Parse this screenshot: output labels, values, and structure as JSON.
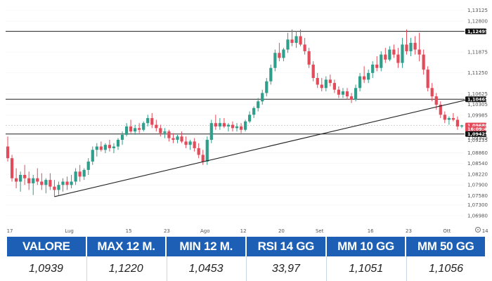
{
  "chart_data": {
    "type": "candlestick",
    "x_ticks": [
      "17",
      "Lug",
      "15",
      "23",
      "Ago",
      "12",
      "20",
      "Set",
      "16",
      "23",
      "Ott",
      "14"
    ],
    "y_ticks": [
      "1,13125",
      "1,12800",
      "1,12495",
      "1,11875",
      "1,11250",
      "1,10625",
      "1,10305",
      "1,09985",
      "1,09305",
      "1,09235",
      "1,08860",
      "1,08540",
      "1,08220",
      "1,07900",
      "1,07580",
      "1,07300",
      "1,06980"
    ],
    "ylim": [
      1.0675,
      1.1318
    ],
    "price_tags": [
      {
        "label": "1,12495",
        "value": 1.12495,
        "style": "dark"
      },
      {
        "label": "1,10465",
        "value": 1.10465,
        "style": "dark"
      },
      {
        "label": "1,09680",
        "value": 1.0968,
        "style": "red"
      },
      {
        "label": "16:09:45",
        "value": 1.0957,
        "style": "red"
      },
      {
        "label": "1,09425",
        "value": 1.09425,
        "style": "dark"
      }
    ],
    "horizontal_levels": [
      1.12495,
      1.10465,
      1.09425
    ],
    "trendline": {
      "from": {
        "index": 11,
        "value": 1.0755
      },
      "to": {
        "index": 109,
        "value": 1.1047
      }
    },
    "candles": [
      {
        "o": 1.0905,
        "h": 1.0935,
        "l": 1.086,
        "c": 1.087
      },
      {
        "o": 1.087,
        "h": 1.088,
        "l": 1.08,
        "c": 1.081
      },
      {
        "o": 1.081,
        "h": 1.084,
        "l": 1.078,
        "c": 1.08
      },
      {
        "o": 1.08,
        "h": 1.083,
        "l": 1.077,
        "c": 1.082
      },
      {
        "o": 1.082,
        "h": 1.085,
        "l": 1.079,
        "c": 1.081
      },
      {
        "o": 1.081,
        "h": 1.083,
        "l": 1.0775,
        "c": 1.0795
      },
      {
        "o": 1.0795,
        "h": 1.082,
        "l": 1.076,
        "c": 1.081
      },
      {
        "o": 1.081,
        "h": 1.084,
        "l": 1.079,
        "c": 1.08
      },
      {
        "o": 1.08,
        "h": 1.0825,
        "l": 1.0775,
        "c": 1.079
      },
      {
        "o": 1.079,
        "h": 1.081,
        "l": 1.0765,
        "c": 1.0805
      },
      {
        "o": 1.0805,
        "h": 1.0825,
        "l": 1.0775,
        "c": 1.0785
      },
      {
        "o": 1.0785,
        "h": 1.0805,
        "l": 1.0755,
        "c": 1.0775
      },
      {
        "o": 1.0775,
        "h": 1.08,
        "l": 1.076,
        "c": 1.079
      },
      {
        "o": 1.079,
        "h": 1.081,
        "l": 1.077,
        "c": 1.08
      },
      {
        "o": 1.08,
        "h": 1.0815,
        "l": 1.0775,
        "c": 1.079
      },
      {
        "o": 1.079,
        "h": 1.082,
        "l": 1.078,
        "c": 1.08
      },
      {
        "o": 1.08,
        "h": 1.084,
        "l": 1.079,
        "c": 1.083
      },
      {
        "o": 1.083,
        "h": 1.085,
        "l": 1.08,
        "c": 1.0815
      },
      {
        "o": 1.0815,
        "h": 1.084,
        "l": 1.0805,
        "c": 1.0835
      },
      {
        "o": 1.0835,
        "h": 1.087,
        "l": 1.082,
        "c": 1.086
      },
      {
        "o": 1.086,
        "h": 1.0905,
        "l": 1.085,
        "c": 1.0895
      },
      {
        "o": 1.0895,
        "h": 1.0915,
        "l": 1.0875,
        "c": 1.0905
      },
      {
        "o": 1.0905,
        "h": 1.092,
        "l": 1.089,
        "c": 1.0895
      },
      {
        "o": 1.0895,
        "h": 1.0915,
        "l": 1.0885,
        "c": 1.091
      },
      {
        "o": 1.091,
        "h": 1.0925,
        "l": 1.089,
        "c": 1.09
      },
      {
        "o": 1.09,
        "h": 1.0915,
        "l": 1.0885,
        "c": 1.0905
      },
      {
        "o": 1.0905,
        "h": 1.093,
        "l": 1.0895,
        "c": 1.0925
      },
      {
        "o": 1.0925,
        "h": 1.095,
        "l": 1.091,
        "c": 1.094
      },
      {
        "o": 1.094,
        "h": 1.0975,
        "l": 1.0935,
        "c": 1.0965
      },
      {
        "o": 1.0965,
        "h": 1.0985,
        "l": 1.0945,
        "c": 1.095
      },
      {
        "o": 1.095,
        "h": 1.097,
        "l": 1.094,
        "c": 1.096
      },
      {
        "o": 1.096,
        "h": 1.0975,
        "l": 1.0945,
        "c": 1.0955
      },
      {
        "o": 1.0955,
        "h": 1.098,
        "l": 1.095,
        "c": 1.0975
      },
      {
        "o": 1.0975,
        "h": 1.1,
        "l": 1.0965,
        "c": 1.099
      },
      {
        "o": 1.099,
        "h": 1.1005,
        "l": 1.096,
        "c": 1.097
      },
      {
        "o": 1.097,
        "h": 1.0985,
        "l": 1.095,
        "c": 1.096
      },
      {
        "o": 1.096,
        "h": 1.097,
        "l": 1.0935,
        "c": 1.0945
      },
      {
        "o": 1.0945,
        "h": 1.096,
        "l": 1.093,
        "c": 1.095
      },
      {
        "o": 1.095,
        "h": 1.0955,
        "l": 1.092,
        "c": 1.093
      },
      {
        "o": 1.093,
        "h": 1.0945,
        "l": 1.0915,
        "c": 1.0925
      },
      {
        "o": 1.0925,
        "h": 1.094,
        "l": 1.0915,
        "c": 1.0935
      },
      {
        "o": 1.0935,
        "h": 1.095,
        "l": 1.0915,
        "c": 1.092
      },
      {
        "o": 1.092,
        "h": 1.0935,
        "l": 1.09,
        "c": 1.091
      },
      {
        "o": 1.091,
        "h": 1.0925,
        "l": 1.0895,
        "c": 1.092
      },
      {
        "o": 1.092,
        "h": 1.093,
        "l": 1.089,
        "c": 1.09
      },
      {
        "o": 1.09,
        "h": 1.0915,
        "l": 1.087,
        "c": 1.088
      },
      {
        "o": 1.088,
        "h": 1.0895,
        "l": 1.085,
        "c": 1.086
      },
      {
        "o": 1.086,
        "h": 1.0935,
        "l": 1.085,
        "c": 1.0925
      },
      {
        "o": 1.0925,
        "h": 1.0985,
        "l": 1.0915,
        "c": 1.0975
      },
      {
        "o": 1.0975,
        "h": 1.1,
        "l": 1.0955,
        "c": 1.0965
      },
      {
        "o": 1.0965,
        "h": 1.099,
        "l": 1.0955,
        "c": 1.0975
      },
      {
        "o": 1.0975,
        "h": 1.099,
        "l": 1.096,
        "c": 1.0965
      },
      {
        "o": 1.0965,
        "h": 1.0975,
        "l": 1.095,
        "c": 1.097
      },
      {
        "o": 1.097,
        "h": 1.098,
        "l": 1.095,
        "c": 1.096
      },
      {
        "o": 1.096,
        "h": 1.0975,
        "l": 1.095,
        "c": 1.0965
      },
      {
        "o": 1.0965,
        "h": 1.0975,
        "l": 1.0945,
        "c": 1.0955
      },
      {
        "o": 1.0955,
        "h": 1.0985,
        "l": 1.095,
        "c": 1.098
      },
      {
        "o": 1.098,
        "h": 1.101,
        "l": 1.0975,
        "c": 1.1
      },
      {
        "o": 1.1,
        "h": 1.1025,
        "l": 1.099,
        "c": 1.102
      },
      {
        "o": 1.102,
        "h": 1.105,
        "l": 1.101,
        "c": 1.104
      },
      {
        "o": 1.104,
        "h": 1.1075,
        "l": 1.103,
        "c": 1.1065
      },
      {
        "o": 1.1065,
        "h": 1.111,
        "l": 1.1055,
        "c": 1.11
      },
      {
        "o": 1.11,
        "h": 1.115,
        "l": 1.109,
        "c": 1.114
      },
      {
        "o": 1.114,
        "h": 1.1195,
        "l": 1.113,
        "c": 1.1185
      },
      {
        "o": 1.1185,
        "h": 1.1215,
        "l": 1.116,
        "c": 1.117
      },
      {
        "o": 1.117,
        "h": 1.12,
        "l": 1.116,
        "c": 1.1195
      },
      {
        "o": 1.1195,
        "h": 1.1245,
        "l": 1.1185,
        "c": 1.1225
      },
      {
        "o": 1.1225,
        "h": 1.1255,
        "l": 1.1205,
        "c": 1.1215
      },
      {
        "o": 1.1215,
        "h": 1.125,
        "l": 1.12,
        "c": 1.1235
      },
      {
        "o": 1.1235,
        "h": 1.1255,
        "l": 1.1205,
        "c": 1.121
      },
      {
        "o": 1.121,
        "h": 1.123,
        "l": 1.118,
        "c": 1.119
      },
      {
        "o": 1.119,
        "h": 1.12,
        "l": 1.114,
        "c": 1.115
      },
      {
        "o": 1.115,
        "h": 1.116,
        "l": 1.11,
        "c": 1.111
      },
      {
        "o": 1.111,
        "h": 1.1125,
        "l": 1.108,
        "c": 1.109
      },
      {
        "o": 1.109,
        "h": 1.111,
        "l": 1.107,
        "c": 1.108
      },
      {
        "o": 1.108,
        "h": 1.1115,
        "l": 1.107,
        "c": 1.1105
      },
      {
        "o": 1.1105,
        "h": 1.112,
        "l": 1.1085,
        "c": 1.1095
      },
      {
        "o": 1.1095,
        "h": 1.1105,
        "l": 1.1065,
        "c": 1.1075
      },
      {
        "o": 1.1075,
        "h": 1.1085,
        "l": 1.105,
        "c": 1.106
      },
      {
        "o": 1.106,
        "h": 1.108,
        "l": 1.105,
        "c": 1.107
      },
      {
        "o": 1.107,
        "h": 1.108,
        "l": 1.1045,
        "c": 1.1055
      },
      {
        "o": 1.1055,
        "h": 1.1065,
        "l": 1.1035,
        "c": 1.1045
      },
      {
        "o": 1.1045,
        "h": 1.109,
        "l": 1.104,
        "c": 1.108
      },
      {
        "o": 1.108,
        "h": 1.1125,
        "l": 1.107,
        "c": 1.1115
      },
      {
        "o": 1.1115,
        "h": 1.1145,
        "l": 1.1095,
        "c": 1.1105
      },
      {
        "o": 1.1105,
        "h": 1.1135,
        "l": 1.1095,
        "c": 1.1125
      },
      {
        "o": 1.1125,
        "h": 1.116,
        "l": 1.111,
        "c": 1.115
      },
      {
        "o": 1.115,
        "h": 1.1175,
        "l": 1.113,
        "c": 1.114
      },
      {
        "o": 1.114,
        "h": 1.119,
        "l": 1.113,
        "c": 1.118
      },
      {
        "o": 1.118,
        "h": 1.12,
        "l": 1.1155,
        "c": 1.1165
      },
      {
        "o": 1.1165,
        "h": 1.1205,
        "l": 1.116,
        "c": 1.1195
      },
      {
        "o": 1.1195,
        "h": 1.121,
        "l": 1.117,
        "c": 1.118
      },
      {
        "o": 1.118,
        "h": 1.12,
        "l": 1.114,
        "c": 1.1155
      },
      {
        "o": 1.1155,
        "h": 1.123,
        "l": 1.114,
        "c": 1.121
      },
      {
        "o": 1.121,
        "h": 1.1255,
        "l": 1.118,
        "c": 1.119
      },
      {
        "o": 1.119,
        "h": 1.123,
        "l": 1.1175,
        "c": 1.1215
      },
      {
        "o": 1.1215,
        "h": 1.1235,
        "l": 1.118,
        "c": 1.1195
      },
      {
        "o": 1.1195,
        "h": 1.1245,
        "l": 1.116,
        "c": 1.118
      },
      {
        "o": 1.118,
        "h": 1.1195,
        "l": 1.112,
        "c": 1.1135
      },
      {
        "o": 1.1135,
        "h": 1.1145,
        "l": 1.107,
        "c": 1.108
      },
      {
        "o": 1.108,
        "h": 1.1095,
        "l": 1.104,
        "c": 1.1055
      },
      {
        "o": 1.1055,
        "h": 1.1065,
        "l": 1.1015,
        "c": 1.103
      },
      {
        "o": 1.103,
        "h": 1.104,
        "l": 1.099,
        "c": 1.1
      },
      {
        "o": 1.1,
        "h": 1.101,
        "l": 1.0975,
        "c": 1.0985
      },
      {
        "o": 1.0985,
        "h": 1.0995,
        "l": 1.097,
        "c": 1.099
      },
      {
        "o": 1.099,
        "h": 1.1005,
        "l": 1.098,
        "c": 1.0985
      },
      {
        "o": 1.0985,
        "h": 1.0995,
        "l": 1.0955,
        "c": 1.0965
      },
      {
        "o": 1.0965,
        "h": 1.097,
        "l": 1.096,
        "c": 1.0968
      }
    ]
  },
  "stats": {
    "headers": [
      "VALORE",
      "MAX 12 M.",
      "MIN 12 M.",
      "RSI 14 GG",
      "MM 10 GG",
      "MM 50 GG"
    ],
    "values": [
      "1,0939",
      "1,1220",
      "1,0453",
      "33,97",
      "1,1051",
      "1,1056"
    ]
  },
  "colors": {
    "up": "#2f9e8a",
    "down": "#e24b5a",
    "header_bg": "#1d5fb4",
    "level_line": "#1f1f1f"
  }
}
